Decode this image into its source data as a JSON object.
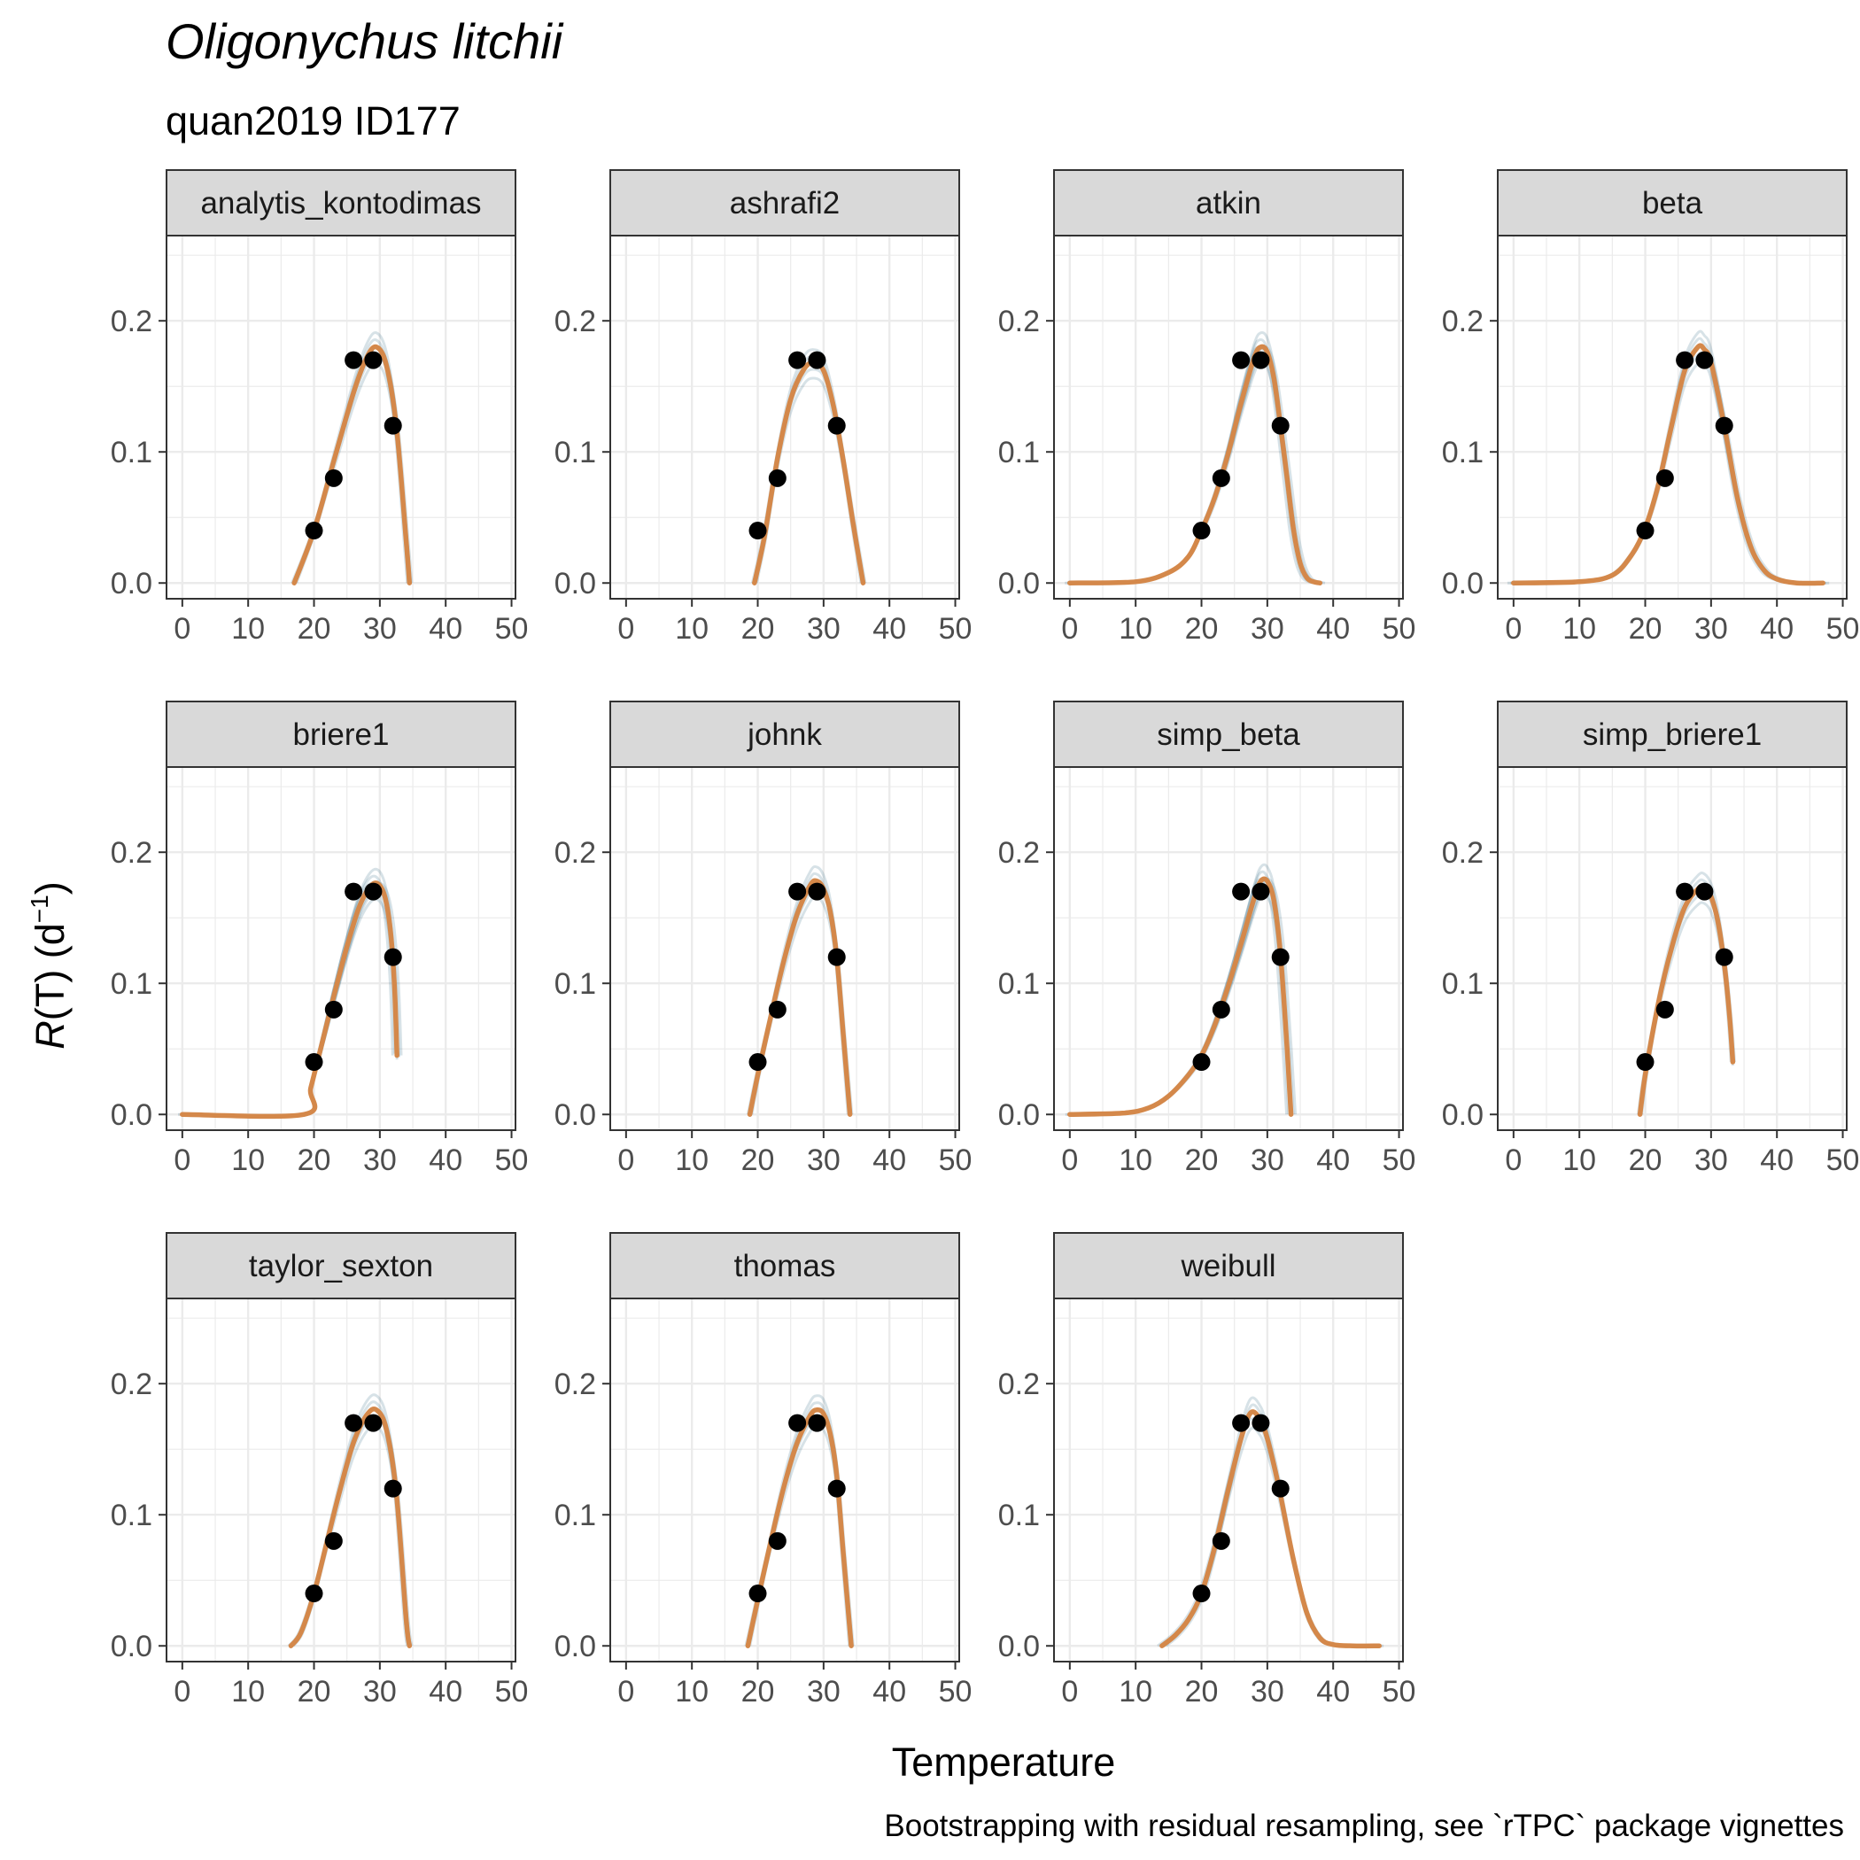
{
  "title": "Oligonychus litchii",
  "subtitle": "quan2019 ID177",
  "xlabel": "Temperature",
  "ylabel": {
    "main": "R",
    "open": "(T) (d",
    "sup": "−1",
    "close": ")"
  },
  "caption": "Bootstrapping with residual resampling, see `rTPC` package vignettes",
  "colors": {
    "fit": "#D4884A",
    "boot": "#1F5F7A",
    "points": "#000000",
    "strip_fill": "#D9D9D9",
    "grid": "#EBEBEB",
    "panel_border": "#333333"
  },
  "chart_data": {
    "type": "line",
    "x_ticks": [
      0,
      10,
      20,
      30,
      40,
      50
    ],
    "y_ticks": [
      0.0,
      0.1,
      0.2
    ],
    "y_tick_labels": [
      "0.0",
      "0.1",
      "0.2"
    ],
    "xlim": [
      -2.4,
      50.6
    ],
    "ylim": [
      -0.012,
      0.265
    ],
    "grid": true,
    "points": {
      "x": [
        20,
        23,
        26,
        29,
        32
      ],
      "y": [
        0.04,
        0.08,
        0.17,
        0.17,
        0.12
      ]
    },
    "panels": [
      {
        "name": "analytis_kontodimas",
        "fit": {
          "x": [
            17,
            20,
            23,
            26,
            28,
            29.5,
            31,
            32.5,
            34,
            34.5
          ],
          "y": [
            0,
            0.04,
            0.093,
            0.145,
            0.172,
            0.18,
            0.166,
            0.12,
            0.032,
            0
          ]
        }
      },
      {
        "name": "ashrafi2",
        "fit": {
          "x": [
            19.5,
            21,
            23,
            25,
            27,
            28.5,
            30,
            31.5,
            33,
            34.5,
            36
          ],
          "y": [
            0,
            0.035,
            0.095,
            0.14,
            0.163,
            0.168,
            0.162,
            0.135,
            0.093,
            0.045,
            0
          ]
        }
      },
      {
        "name": "atkin",
        "fit": {
          "x": [
            0,
            10,
            15,
            18,
            20,
            22,
            24,
            26,
            28,
            29,
            30,
            31,
            32,
            33,
            34,
            35,
            36,
            37,
            38
          ],
          "y": [
            0,
            0.001,
            0.008,
            0.02,
            0.04,
            0.065,
            0.098,
            0.137,
            0.172,
            0.18,
            0.176,
            0.156,
            0.12,
            0.08,
            0.04,
            0.015,
            0.004,
            0.001,
            0
          ]
        }
      },
      {
        "name": "beta",
        "fit": {
          "x": [
            0,
            10,
            15,
            18,
            20,
            22,
            24,
            26,
            28,
            29,
            30,
            32,
            34,
            36,
            38,
            40,
            43,
            47
          ],
          "y": [
            0,
            0.001,
            0.006,
            0.022,
            0.042,
            0.075,
            0.12,
            0.162,
            0.18,
            0.178,
            0.168,
            0.12,
            0.065,
            0.028,
            0.01,
            0.003,
            0,
            0
          ]
        }
      },
      {
        "name": "briere1",
        "fit": {
          "x": [
            0,
            18.5,
            19.5,
            21,
            23,
            25,
            27,
            29,
            30.5,
            31.5,
            32.2,
            32.6
          ],
          "y": [
            0,
            0,
            0.02,
            0.05,
            0.09,
            0.128,
            0.16,
            0.176,
            0.17,
            0.145,
            0.1,
            0.045
          ]
        }
      },
      {
        "name": "johnk",
        "fit": {
          "x": [
            18.8,
            20,
            22,
            24,
            26,
            28,
            29,
            30,
            31,
            32,
            33,
            34
          ],
          "y": [
            0,
            0.03,
            0.075,
            0.118,
            0.153,
            0.175,
            0.178,
            0.172,
            0.155,
            0.12,
            0.06,
            0
          ]
        }
      },
      {
        "name": "simp_beta",
        "fit": {
          "x": [
            0,
            8,
            12,
            15,
            18,
            20,
            22,
            24,
            26,
            28,
            29,
            30,
            31,
            32,
            33,
            33.6
          ],
          "y": [
            0,
            0.001,
            0.005,
            0.014,
            0.03,
            0.045,
            0.068,
            0.097,
            0.13,
            0.165,
            0.178,
            0.178,
            0.163,
            0.122,
            0.05,
            0
          ]
        }
      },
      {
        "name": "simp_briere1",
        "fit": {
          "x": [
            19.2,
            20,
            22,
            24,
            26,
            28,
            29,
            30,
            31,
            32,
            32.8,
            33.3
          ],
          "y": [
            0,
            0.03,
            0.085,
            0.127,
            0.158,
            0.172,
            0.173,
            0.166,
            0.148,
            0.115,
            0.075,
            0.04
          ]
        }
      },
      {
        "name": "taylor_sexton",
        "fit": {
          "x": [
            16.5,
            18,
            20,
            22,
            24,
            26,
            28,
            29.5,
            31,
            32.5,
            34,
            34.5
          ],
          "y": [
            0,
            0.01,
            0.04,
            0.08,
            0.12,
            0.155,
            0.176,
            0.18,
            0.165,
            0.117,
            0.02,
            0
          ]
        }
      },
      {
        "name": "thomas",
        "fit": {
          "x": [
            18.5,
            20,
            22,
            24,
            26,
            28,
            29,
            30,
            31,
            32,
            33,
            34.2
          ],
          "y": [
            0,
            0.035,
            0.08,
            0.122,
            0.155,
            0.176,
            0.18,
            0.177,
            0.162,
            0.13,
            0.07,
            0
          ]
        }
      },
      {
        "name": "weibull",
        "fit": {
          "x": [
            14,
            16,
            18,
            20,
            22,
            24,
            26,
            27.5,
            29,
            30,
            31,
            32,
            34,
            36,
            38,
            40,
            43,
            47
          ],
          "y": [
            0,
            0.008,
            0.02,
            0.04,
            0.075,
            0.118,
            0.158,
            0.178,
            0.172,
            0.158,
            0.138,
            0.115,
            0.065,
            0.025,
            0.006,
            0.001,
            0,
            0
          ]
        }
      }
    ]
  }
}
